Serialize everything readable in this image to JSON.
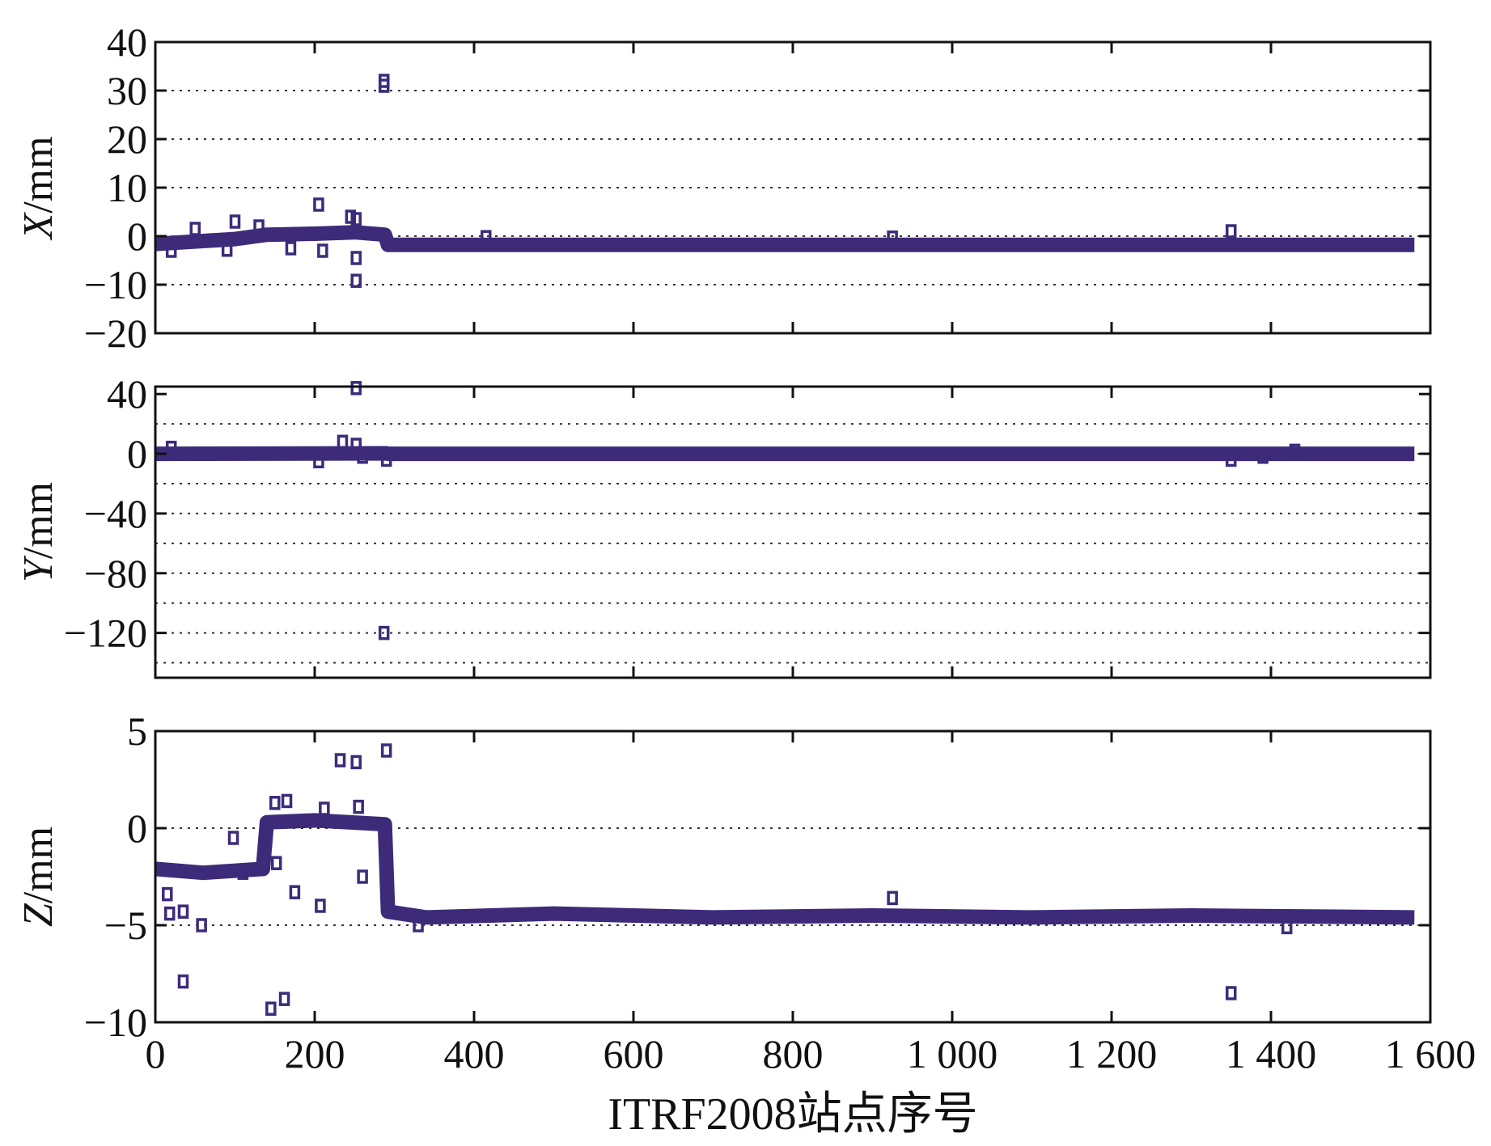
{
  "chart_data": [
    {
      "type": "scatter",
      "ylabel_var": "X",
      "ylabel_unit": "/mm",
      "xlim": [
        0,
        1600
      ],
      "ylim": [
        -20,
        40
      ],
      "yticks": [
        40,
        30,
        20,
        10,
        0,
        -10,
        -20
      ],
      "ytick_labels": [
        "40",
        "30",
        "20",
        "10",
        "0",
        "−10",
        "−20"
      ],
      "grid_y": [
        -10,
        0,
        10,
        20,
        30
      ],
      "baseline": [
        {
          "x": 0,
          "y": -1.6
        },
        {
          "x": 60,
          "y": -1.0
        },
        {
          "x": 100,
          "y": -0.6
        },
        {
          "x": 140,
          "y": 0.3
        },
        {
          "x": 200,
          "y": 0.5
        },
        {
          "x": 250,
          "y": 0.8
        },
        {
          "x": 288,
          "y": 0.3
        },
        {
          "x": 292,
          "y": -1.8
        },
        {
          "x": 1580,
          "y": -1.8
        }
      ],
      "outliers": [
        {
          "x": 287,
          "y": 32
        },
        {
          "x": 287,
          "y": 31
        },
        {
          "x": 205,
          "y": 6.5
        },
        {
          "x": 245,
          "y": 4
        },
        {
          "x": 252,
          "y": 3.5
        },
        {
          "x": 100,
          "y": 3
        },
        {
          "x": 50,
          "y": 1.5
        },
        {
          "x": 130,
          "y": 2
        },
        {
          "x": 210,
          "y": -3
        },
        {
          "x": 252,
          "y": -4.5
        },
        {
          "x": 252,
          "y": -9.2
        },
        {
          "x": 1350,
          "y": 1
        },
        {
          "x": 415,
          "y": -0.2
        },
        {
          "x": 925,
          "y": -0.3
        },
        {
          "x": 20,
          "y": -3
        },
        {
          "x": 90,
          "y": -2.8
        },
        {
          "x": 170,
          "y": -2.5
        }
      ]
    },
    {
      "type": "scatter",
      "ylabel_var": "Y",
      "ylabel_unit": "/mm",
      "xlim": [
        0,
        1600
      ],
      "ylim": [
        -150,
        45
      ],
      "yticks": [
        40,
        0,
        -40,
        -80,
        -120
      ],
      "ytick_labels": [
        "40",
        "0",
        "−40",
        "−80",
        "−120"
      ],
      "grid_y": [
        20,
        0,
        -20,
        -40,
        -60,
        -80,
        -100,
        -120,
        -140
      ],
      "baseline": [
        {
          "x": 0,
          "y": 0
        },
        {
          "x": 290,
          "y": 0.3
        },
        {
          "x": 292,
          "y": 0
        },
        {
          "x": 1580,
          "y": 0
        }
      ],
      "outliers": [
        {
          "x": 252,
          "y": 44
        },
        {
          "x": 235,
          "y": 8
        },
        {
          "x": 252,
          "y": 6
        },
        {
          "x": 205,
          "y": -5
        },
        {
          "x": 287,
          "y": -120
        },
        {
          "x": 290,
          "y": -4
        },
        {
          "x": 1350,
          "y": -4
        },
        {
          "x": 1390,
          "y": -2
        },
        {
          "x": 1430,
          "y": 2
        },
        {
          "x": 20,
          "y": 4
        },
        {
          "x": 260,
          "y": -2
        }
      ]
    },
    {
      "type": "scatter",
      "ylabel_var": "Z",
      "ylabel_unit": "/mm",
      "xlim": [
        0,
        1600
      ],
      "ylim": [
        -10,
        5
      ],
      "yticks": [
        5,
        0,
        -5,
        -10
      ],
      "ytick_labels": [
        "5",
        "0",
        "−5",
        "−10"
      ],
      "grid_y": [
        0,
        -5
      ],
      "xticks": [
        0,
        200,
        400,
        600,
        800,
        1000,
        1200,
        1400,
        1600
      ],
      "xtick_labels": [
        "0",
        "200",
        "400",
        "600",
        "800",
        "1 000",
        "1 200",
        "1 400",
        "1 600"
      ],
      "xlabel": "ITRF2008站点序号",
      "baseline": [
        {
          "x": 0,
          "y": -2.1
        },
        {
          "x": 60,
          "y": -2.3
        },
        {
          "x": 135,
          "y": -2.1
        },
        {
          "x": 140,
          "y": 0.3
        },
        {
          "x": 200,
          "y": 0.4
        },
        {
          "x": 288,
          "y": 0.2
        },
        {
          "x": 292,
          "y": -4.3
        },
        {
          "x": 340,
          "y": -4.6
        },
        {
          "x": 500,
          "y": -4.4
        },
        {
          "x": 700,
          "y": -4.6
        },
        {
          "x": 900,
          "y": -4.5
        },
        {
          "x": 1100,
          "y": -4.6
        },
        {
          "x": 1300,
          "y": -4.5
        },
        {
          "x": 1580,
          "y": -4.6
        }
      ],
      "outliers": [
        {
          "x": 290,
          "y": 4
        },
        {
          "x": 232,
          "y": 3.5
        },
        {
          "x": 252,
          "y": 3.4
        },
        {
          "x": 150,
          "y": 1.3
        },
        {
          "x": 165,
          "y": 1.4
        },
        {
          "x": 255,
          "y": 1.1
        },
        {
          "x": 212,
          "y": 1.0
        },
        {
          "x": 98,
          "y": -0.5
        },
        {
          "x": 15,
          "y": -3.4
        },
        {
          "x": 18,
          "y": -4.4
        },
        {
          "x": 35,
          "y": -4.3
        },
        {
          "x": 58,
          "y": -5.0
        },
        {
          "x": 175,
          "y": -3.3
        },
        {
          "x": 207,
          "y": -4.0
        },
        {
          "x": 260,
          "y": -2.5
        },
        {
          "x": 35,
          "y": -7.9
        },
        {
          "x": 145,
          "y": -9.3
        },
        {
          "x": 162,
          "y": -8.8
        },
        {
          "x": 925,
          "y": -3.6
        },
        {
          "x": 1350,
          "y": -8.5
        },
        {
          "x": 290,
          "y": -1.5
        },
        {
          "x": 152,
          "y": -1.8
        },
        {
          "x": 110,
          "y": -2.3
        },
        {
          "x": 330,
          "y": -5.0
        },
        {
          "x": 1420,
          "y": -5.1
        }
      ]
    }
  ],
  "colors": {
    "marker": "#3d2b7a",
    "axis": "#111111",
    "grid": "#333333"
  }
}
